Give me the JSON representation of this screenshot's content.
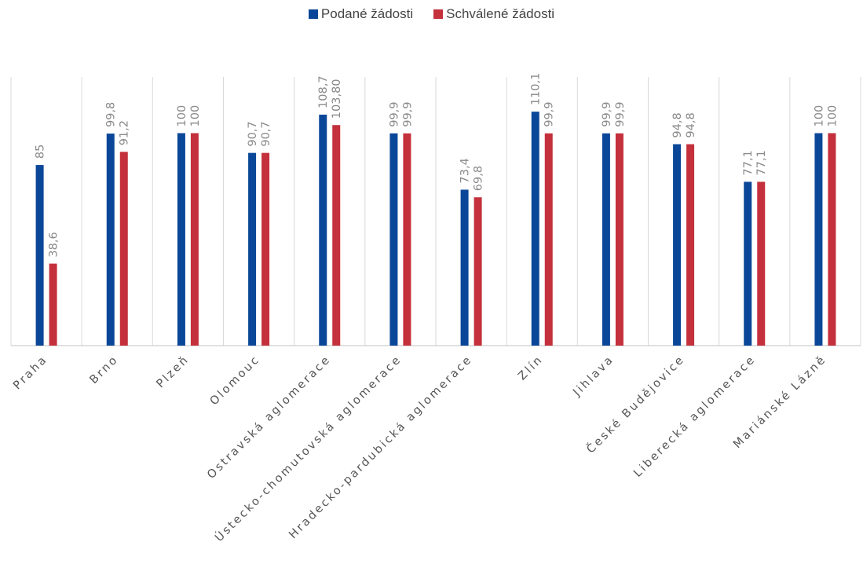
{
  "chart_data": {
    "type": "bar",
    "categories": [
      "Praha",
      "Brno",
      "Plzeň",
      "Olomouc",
      "Ostravská aglomerace",
      "Ústecko-chomutovská aglomerace",
      "Hradecko-pardubická aglomerace",
      "Zlín",
      "Jihlava",
      "České Budějovice",
      "Liberecká aglomerace",
      "Mariánské Lázně"
    ],
    "series": [
      {
        "name": "Podané žádosti",
        "color": "#0b4799",
        "values": [
          85,
          99.8,
          100,
          90.7,
          108.7,
          99.9,
          73.4,
          110.1,
          99.9,
          94.8,
          77.1,
          100
        ],
        "labels": [
          "85",
          "99,8",
          "100",
          "90,7",
          "108,7",
          "99,9",
          "73,4",
          "110,1",
          "99,9",
          "94,8",
          "77,1",
          "100"
        ]
      },
      {
        "name": "Schválené žádosti",
        "color": "#c4303b",
        "values": [
          38.6,
          91.2,
          100,
          90.7,
          103.8,
          99.9,
          69.8,
          99.9,
          99.9,
          94.8,
          77.1,
          100
        ],
        "labels": [
          "38,6",
          "91,2",
          "100",
          "90,7",
          "103,80",
          "99,9",
          "69,8",
          "99,9",
          "99,9",
          "94,8",
          "77,1",
          "100"
        ]
      }
    ],
    "ylim": [
      0,
      115
    ],
    "grid": "vertical category separators",
    "legend_position": "top-center"
  }
}
